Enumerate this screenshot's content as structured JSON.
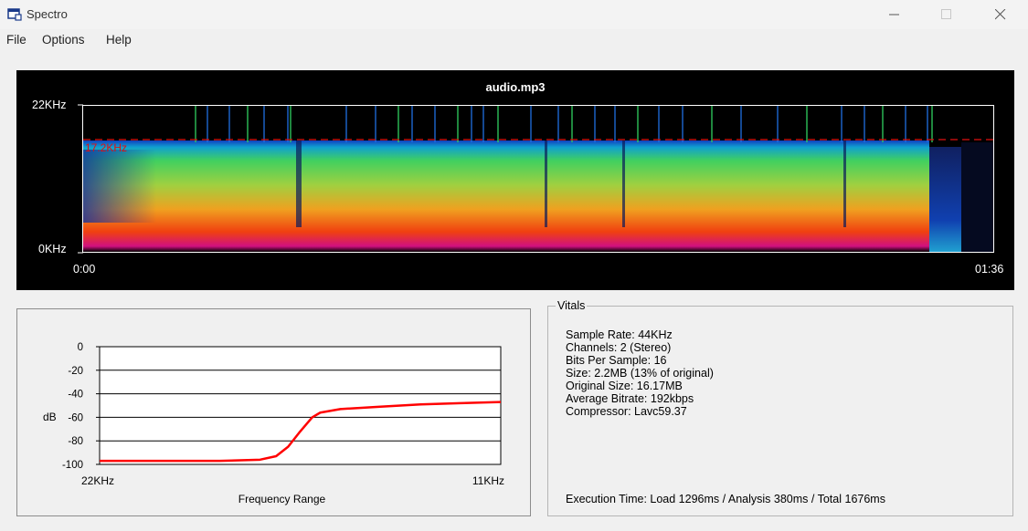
{
  "window": {
    "title": "Spectro",
    "minimize_icon": "minimize-icon",
    "maximize_icon": "maximize-icon",
    "close_icon": "close-icon"
  },
  "menu": [
    "File",
    "Options",
    "Help"
  ],
  "spectrogram": {
    "title": "audio.mp3",
    "y_top_label": "22KHz",
    "y_bottom_label": "0KHz",
    "x_start_label": "0:00",
    "x_end_label": "01:36",
    "cutoff_label": "17.2KHz",
    "cutoff_color": "#e01010",
    "background": "#000000"
  },
  "frequency_range": {
    "ylabel": "dB",
    "xlabel": "Frequency Range",
    "x_start_label": "22KHz",
    "x_end_label": "11KHz",
    "yticks": [
      "0",
      "-20",
      "-40",
      "-60",
      "-80",
      "-100"
    ]
  },
  "chart_data": {
    "type": "line",
    "xlabel": "Frequency Range",
    "ylabel": "dB",
    "ylim": [
      -100,
      0
    ],
    "xlim_labels": [
      "22KHz",
      "11KHz"
    ],
    "grid": true,
    "series": [
      {
        "color": "#ff0000",
        "x": [
          0,
          0.1,
          0.2,
          0.3,
          0.4,
          0.44,
          0.47,
          0.5,
          0.53,
          0.55,
          0.6,
          0.7,
          0.8,
          0.9,
          1.0
        ],
        "y": [
          -97,
          -97,
          -97,
          -97,
          -96,
          -93,
          -85,
          -72,
          -60,
          -56,
          -53,
          -51,
          -49,
          -48,
          -47
        ]
      }
    ]
  },
  "vitals": {
    "legend": "Vitals",
    "lines": [
      "Sample Rate: 44KHz",
      "Channels: 2 (Stereo)",
      "Bits Per Sample: 16",
      "Size: 2.2MB (13% of original)",
      "Original Size: 16.17MB",
      "Average Bitrate: 192kbps",
      "Compressor: Lavc59.37"
    ],
    "execution_time": "Execution Time: Load 1296ms / Analysis 380ms / Total 1676ms"
  }
}
